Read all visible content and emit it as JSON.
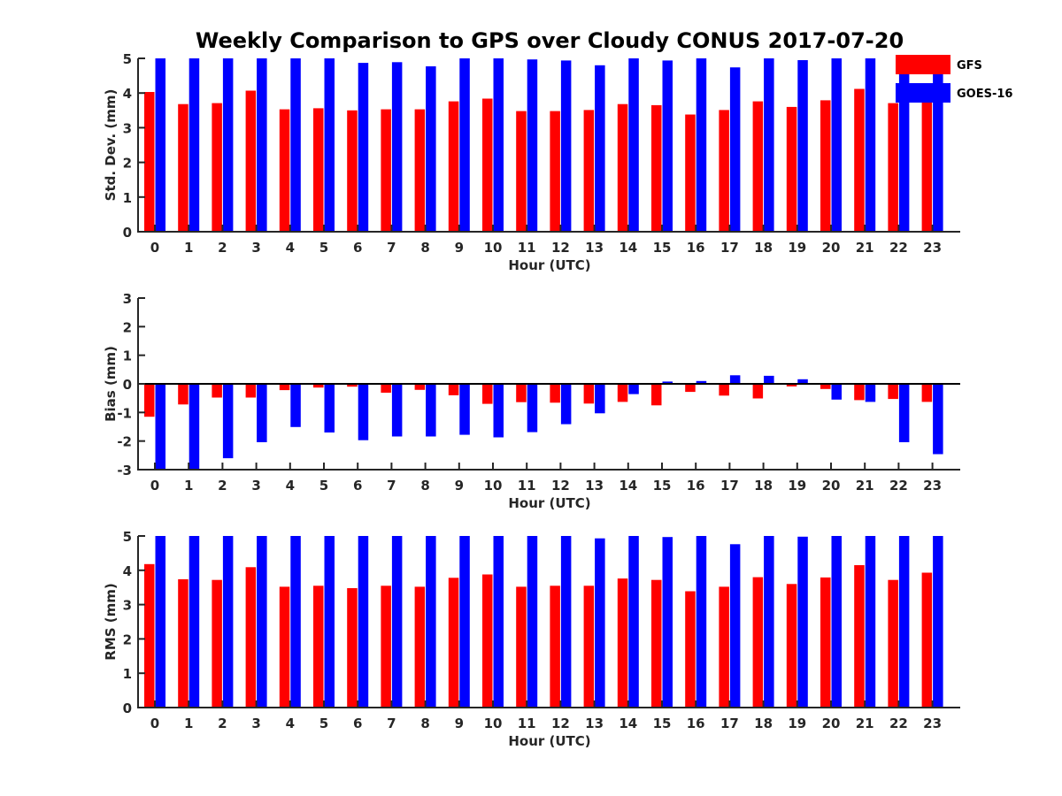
{
  "title": "Weekly Comparison to GPS over Cloudy CONUS 2017-07-20",
  "legend": [
    {
      "name": "GFS",
      "color": "#ff0000"
    },
    {
      "name": "GOES-16",
      "color": "#0000ff"
    }
  ],
  "chart_data": [
    {
      "type": "bar",
      "title": "Weekly Comparison to GPS over Cloudy CONUS 2017-07-20",
      "xlabel": "Hour (UTC)",
      "ylabel": "Std. Dev. (mm)",
      "ylim": [
        0,
        5
      ],
      "yticks": [
        0,
        1,
        2,
        3,
        4,
        5
      ],
      "categories": [
        "0",
        "1",
        "2",
        "3",
        "4",
        "5",
        "6",
        "7",
        "8",
        "9",
        "10",
        "11",
        "12",
        "13",
        "14",
        "15",
        "16",
        "17",
        "18",
        "19",
        "20",
        "21",
        "22",
        "23"
      ],
      "legend_position": "top-right",
      "series": [
        {
          "name": "GFS",
          "color": "#ff0000",
          "values": [
            4.03,
            3.68,
            3.71,
            4.07,
            3.53,
            3.56,
            3.5,
            3.53,
            3.53,
            3.76,
            3.84,
            3.48,
            3.48,
            3.51,
            3.68,
            3.65,
            3.38,
            3.51,
            3.76,
            3.6,
            3.79,
            4.12,
            3.71,
            3.88
          ]
        },
        {
          "name": "GOES-16",
          "color": "#0000ff",
          "values": [
            5.0,
            5.0,
            5.0,
            5.0,
            5.0,
            5.0,
            4.87,
            4.89,
            4.77,
            5.0,
            5.0,
            4.97,
            4.94,
            4.8,
            5.0,
            4.94,
            5.0,
            4.74,
            5.0,
            4.95,
            5.0,
            5.0,
            5.0,
            5.0
          ]
        }
      ]
    },
    {
      "type": "bar",
      "xlabel": "Hour (UTC)",
      "ylabel": "Bias (mm)",
      "ylim": [
        -3,
        3
      ],
      "yticks": [
        -3,
        -2,
        -1,
        0,
        1,
        2,
        3
      ],
      "categories": [
        "0",
        "1",
        "2",
        "3",
        "4",
        "5",
        "6",
        "7",
        "8",
        "9",
        "10",
        "11",
        "12",
        "13",
        "14",
        "15",
        "16",
        "17",
        "18",
        "19",
        "20",
        "21",
        "22",
        "23"
      ],
      "series": [
        {
          "name": "GFS",
          "color": "#ff0000",
          "values": [
            -1.15,
            -0.72,
            -0.48,
            -0.48,
            -0.22,
            -0.13,
            -0.1,
            -0.31,
            -0.21,
            -0.4,
            -0.7,
            -0.64,
            -0.66,
            -0.69,
            -0.63,
            -0.75,
            -0.28,
            -0.41,
            -0.51,
            -0.09,
            -0.18,
            -0.57,
            -0.53,
            -0.63
          ]
        },
        {
          "name": "GOES-16",
          "color": "#0000ff",
          "values": [
            -3.0,
            -3.0,
            -2.6,
            -2.04,
            -1.51,
            -1.7,
            -1.97,
            -1.84,
            -1.84,
            -1.78,
            -1.87,
            -1.69,
            -1.41,
            -1.03,
            -0.36,
            0.08,
            0.1,
            0.3,
            0.28,
            0.16,
            -0.55,
            -0.63,
            -2.04,
            -2.46
          ]
        }
      ]
    },
    {
      "type": "bar",
      "xlabel": "Hour (UTC)",
      "ylabel": "RMS (mm)",
      "ylim": [
        0,
        5
      ],
      "yticks": [
        0,
        1,
        2,
        3,
        4,
        5
      ],
      "categories": [
        "0",
        "1",
        "2",
        "3",
        "4",
        "5",
        "6",
        "7",
        "8",
        "9",
        "10",
        "11",
        "12",
        "13",
        "14",
        "15",
        "16",
        "17",
        "18",
        "19",
        "20",
        "21",
        "22",
        "23"
      ],
      "series": [
        {
          "name": "GFS",
          "color": "#ff0000",
          "values": [
            4.18,
            3.74,
            3.72,
            4.09,
            3.52,
            3.55,
            3.48,
            3.55,
            3.52,
            3.78,
            3.88,
            3.52,
            3.55,
            3.55,
            3.76,
            3.72,
            3.39,
            3.52,
            3.8,
            3.6,
            3.79,
            4.15,
            3.72,
            3.93
          ]
        },
        {
          "name": "GOES-16",
          "color": "#0000ff",
          "values": [
            5.0,
            5.0,
            5.0,
            5.0,
            5.0,
            5.0,
            5.0,
            5.0,
            5.0,
            5.0,
            5.0,
            5.0,
            5.0,
            4.93,
            5.0,
            4.97,
            5.0,
            4.76,
            5.0,
            4.98,
            5.0,
            5.0,
            5.0,
            5.0
          ]
        }
      ]
    }
  ]
}
